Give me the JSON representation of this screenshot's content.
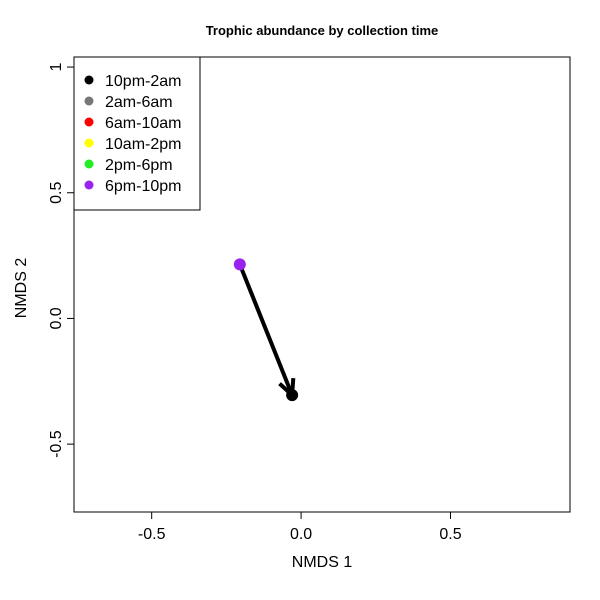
{
  "chart_data": {
    "type": "scatter",
    "title": "Trophic abundance by collection time",
    "xlabel": "NMDS 1",
    "ylabel": "NMDS 2",
    "xlim": [
      -0.76,
      0.9
    ],
    "ylim": [
      -0.77,
      1.04
    ],
    "x_ticks": [
      -0.5,
      0.0,
      0.5
    ],
    "y_ticks": [
      -0.5,
      0.0,
      0.5,
      1.0
    ],
    "grid": false,
    "legend": {
      "placement": "top-left",
      "entries": [
        {
          "label": "10pm-2am",
          "color": "#000000"
        },
        {
          "label": "2am-6am",
          "color": "#777777"
        },
        {
          "label": "6am-10am",
          "color": "#ff0000"
        },
        {
          "label": "10am-2pm",
          "color": "#ffff00"
        },
        {
          "label": "2pm-6pm",
          "color": "#22ee22"
        },
        {
          "label": "6pm-10pm",
          "color": "#9922ee"
        }
      ]
    },
    "points": [
      {
        "series": "6pm-10pm",
        "x": -0.205,
        "y": 0.215,
        "color": "#9922ee"
      },
      {
        "series": "10pm-2am",
        "x": -0.03,
        "y": -0.305,
        "color": "#000000"
      }
    ],
    "arrow": {
      "from": [
        -0.205,
        0.215
      ],
      "to": [
        -0.03,
        -0.305
      ],
      "color": "#000000"
    }
  }
}
